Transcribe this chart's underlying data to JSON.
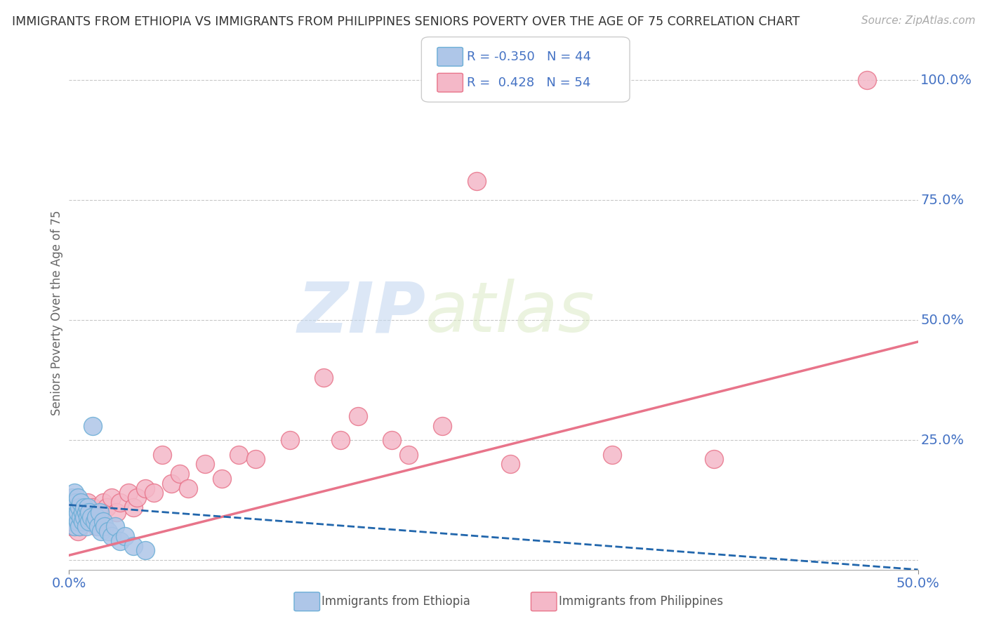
{
  "title": "IMMIGRANTS FROM ETHIOPIA VS IMMIGRANTS FROM PHILIPPINES SENIORS POVERTY OVER THE AGE OF 75 CORRELATION CHART",
  "source": "Source: ZipAtlas.com",
  "ylabel": "Seniors Poverty Over the Age of 75",
  "xlim": [
    0.0,
    0.5
  ],
  "ylim": [
    -0.02,
    1.05
  ],
  "ytick_positions": [
    0.0,
    0.25,
    0.5,
    0.75,
    1.0
  ],
  "ytick_labels": [
    "",
    "25.0%",
    "50.0%",
    "75.0%",
    "100.0%"
  ],
  "grid_color": "#c8c8c8",
  "background_color": "#ffffff",
  "ethiopia_color": "#aec6e8",
  "ethiopia_edge_color": "#6baed6",
  "ethiopia_line_color": "#2166ac",
  "ethiopia_line_style": "--",
  "philippines_color": "#f4b8c8",
  "philippines_edge_color": "#e8748a",
  "philippines_line_color": "#e8748a",
  "philippines_line_style": "-",
  "R_ethiopia": -0.35,
  "N_ethiopia": 44,
  "R_philippines": 0.428,
  "N_philippines": 54,
  "watermark_zip": "ZIP",
  "watermark_atlas": "atlas",
  "ethiopia_x": [
    0.001,
    0.001,
    0.002,
    0.002,
    0.002,
    0.003,
    0.003,
    0.003,
    0.003,
    0.004,
    0.004,
    0.005,
    0.005,
    0.005,
    0.006,
    0.006,
    0.007,
    0.007,
    0.008,
    0.008,
    0.009,
    0.009,
    0.01,
    0.01,
    0.011,
    0.011,
    0.012,
    0.012,
    0.013,
    0.014,
    0.015,
    0.016,
    0.017,
    0.018,
    0.019,
    0.02,
    0.021,
    0.023,
    0.025,
    0.027,
    0.03,
    0.033,
    0.038,
    0.045
  ],
  "ethiopia_y": [
    0.1,
    0.12,
    0.08,
    0.13,
    0.09,
    0.11,
    0.07,
    0.14,
    0.1,
    0.09,
    0.12,
    0.08,
    0.13,
    0.1,
    0.07,
    0.11,
    0.09,
    0.12,
    0.1,
    0.08,
    0.11,
    0.09,
    0.1,
    0.07,
    0.09,
    0.11,
    0.08,
    0.1,
    0.09,
    0.28,
    0.08,
    0.09,
    0.07,
    0.1,
    0.06,
    0.08,
    0.07,
    0.06,
    0.05,
    0.07,
    0.04,
    0.05,
    0.03,
    0.02
  ],
  "philippines_x": [
    0.001,
    0.001,
    0.002,
    0.002,
    0.003,
    0.003,
    0.004,
    0.004,
    0.005,
    0.005,
    0.006,
    0.006,
    0.007,
    0.007,
    0.008,
    0.009,
    0.01,
    0.011,
    0.012,
    0.013,
    0.014,
    0.015,
    0.016,
    0.018,
    0.02,
    0.022,
    0.025,
    0.028,
    0.03,
    0.035,
    0.038,
    0.04,
    0.045,
    0.05,
    0.055,
    0.06,
    0.065,
    0.07,
    0.08,
    0.09,
    0.1,
    0.11,
    0.13,
    0.15,
    0.16,
    0.17,
    0.19,
    0.2,
    0.22,
    0.24,
    0.26,
    0.32,
    0.38,
    0.47
  ],
  "philippines_y": [
    0.07,
    0.1,
    0.08,
    0.11,
    0.09,
    0.07,
    0.1,
    0.08,
    0.06,
    0.09,
    0.08,
    0.07,
    0.11,
    0.09,
    0.08,
    0.1,
    0.09,
    0.12,
    0.1,
    0.08,
    0.11,
    0.09,
    0.07,
    0.1,
    0.12,
    0.11,
    0.13,
    0.1,
    0.12,
    0.14,
    0.11,
    0.13,
    0.15,
    0.14,
    0.22,
    0.16,
    0.18,
    0.15,
    0.2,
    0.17,
    0.22,
    0.21,
    0.25,
    0.38,
    0.25,
    0.3,
    0.25,
    0.22,
    0.28,
    0.79,
    0.2,
    0.22,
    0.21,
    1.0
  ],
  "phi_line_x0": 0.0,
  "phi_line_y0": 0.01,
  "phi_line_x1": 0.5,
  "phi_line_y1": 0.455,
  "eth_line_x0": 0.0,
  "eth_line_y0": 0.115,
  "eth_line_x1": 0.5,
  "eth_line_y1": -0.02
}
